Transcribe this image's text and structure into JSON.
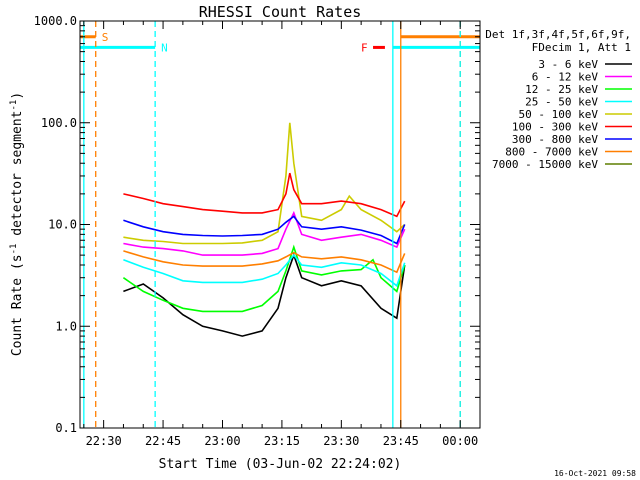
{
  "title": "RHESSI Count Rates",
  "timestamp": "16-Oct-2021 09:58",
  "chart_data": {
    "type": "line",
    "title": "RHESSI Count Rates",
    "xlabel": "Start Time (03-Jun-02 22:24:02)",
    "ylabel_parts": [
      "Count Rate (s",
      "-1",
      " detector segment",
      "-1",
      ")"
    ],
    "y_scale": "log",
    "ylim": [
      0.1,
      1000
    ],
    "y_ticks": [
      "0.1",
      "1.0",
      "10.0",
      "100.0",
      "1000.0"
    ],
    "xlim": [
      "22:24:02",
      "00:05:00"
    ],
    "x_ticks": [
      "22:30",
      "22:45",
      "23:00",
      "23:15",
      "23:30",
      "23:45",
      "00:00"
    ],
    "legend_header": [
      "Det 1f,3f,4f,5f,6f,9f,",
      "FDecim 1, Att 1"
    ],
    "series": [
      {
        "name": "3 - 6 keV",
        "color": "#000000",
        "x": [
          "22:35",
          "22:40",
          "22:45",
          "22:50",
          "22:55",
          "23:00",
          "23:05",
          "23:10",
          "23:14",
          "23:16",
          "23:18",
          "23:20",
          "23:25",
          "23:30",
          "23:35",
          "23:40",
          "23:44",
          "23:46"
        ],
        "y": [
          2.2,
          2.6,
          1.9,
          1.3,
          1.0,
          0.9,
          0.8,
          0.9,
          1.5,
          3.0,
          5.0,
          3.0,
          2.5,
          2.8,
          2.5,
          1.5,
          1.2,
          4.0
        ]
      },
      {
        "name": "6 - 12 keV",
        "color": "#ff00ff",
        "x": [
          "22:35",
          "22:40",
          "22:45",
          "22:50",
          "22:55",
          "23:00",
          "23:05",
          "23:10",
          "23:14",
          "23:16",
          "23:18",
          "23:20",
          "23:25",
          "23:30",
          "23:35",
          "23:40",
          "23:44",
          "23:46"
        ],
        "y": [
          6.5,
          6.0,
          5.8,
          5.5,
          5.0,
          5.0,
          5.0,
          5.2,
          5.8,
          9.0,
          13.0,
          8.0,
          7.0,
          7.5,
          8.0,
          7.0,
          6.0,
          9.0
        ]
      },
      {
        "name": "12 - 25 keV",
        "color": "#00ff00",
        "x": [
          "22:35",
          "22:40",
          "22:45",
          "22:50",
          "22:55",
          "23:00",
          "23:05",
          "23:10",
          "23:14",
          "23:16",
          "23:18",
          "23:20",
          "23:25",
          "23:30",
          "23:35",
          "23:38",
          "23:40",
          "23:44",
          "23:46"
        ],
        "y": [
          3.0,
          2.2,
          1.8,
          1.5,
          1.4,
          1.4,
          1.4,
          1.6,
          2.2,
          3.5,
          6.0,
          3.5,
          3.2,
          3.5,
          3.6,
          4.5,
          3.0,
          2.2,
          4.0
        ]
      },
      {
        "name": "25 - 50 keV",
        "color": "#00ffff",
        "x": [
          "22:35",
          "22:40",
          "22:45",
          "22:50",
          "22:55",
          "23:00",
          "23:05",
          "23:10",
          "23:14",
          "23:16",
          "23:18",
          "23:20",
          "23:25",
          "23:30",
          "23:35",
          "23:40",
          "23:44",
          "23:46"
        ],
        "y": [
          4.5,
          3.8,
          3.3,
          2.8,
          2.7,
          2.7,
          2.7,
          2.9,
          3.3,
          4.0,
          5.0,
          4.0,
          3.8,
          4.2,
          4.0,
          3.3,
          2.5,
          4.2
        ]
      },
      {
        "name": "50 - 100 keV",
        "color": "#cccc00",
        "x": [
          "22:35",
          "22:40",
          "22:45",
          "22:50",
          "22:55",
          "23:00",
          "23:05",
          "23:10",
          "23:14",
          "23:16",
          "23:17",
          "23:18",
          "23:20",
          "23:25",
          "23:30",
          "23:32",
          "23:35",
          "23:40",
          "23:44",
          "23:46"
        ],
        "y": [
          7.5,
          7.0,
          6.8,
          6.5,
          6.5,
          6.5,
          6.6,
          7.0,
          8.5,
          30,
          100,
          40,
          12,
          11,
          14,
          19,
          14,
          11,
          8.5,
          10
        ]
      },
      {
        "name": "100 - 300 keV",
        "color": "#ff0000",
        "x": [
          "22:35",
          "22:40",
          "22:45",
          "22:50",
          "22:55",
          "23:00",
          "23:05",
          "23:10",
          "23:14",
          "23:16",
          "23:17",
          "23:18",
          "23:20",
          "23:25",
          "23:30",
          "23:35",
          "23:40",
          "23:44",
          "23:46"
        ],
        "y": [
          20,
          18,
          16,
          15,
          14,
          13.5,
          13,
          13,
          14,
          20,
          32,
          22,
          16,
          16,
          17,
          16,
          14,
          12,
          17
        ]
      },
      {
        "name": "300 - 800 keV",
        "color": "#0000ff",
        "x": [
          "22:35",
          "22:40",
          "22:45",
          "22:50",
          "22:55",
          "23:00",
          "23:05",
          "23:10",
          "23:14",
          "23:16",
          "23:18",
          "23:20",
          "23:25",
          "23:30",
          "23:35",
          "23:40",
          "23:44",
          "23:46"
        ],
        "y": [
          11,
          9.5,
          8.5,
          8.0,
          7.8,
          7.7,
          7.8,
          8.0,
          9.0,
          10.5,
          12,
          9.5,
          9.0,
          9.5,
          8.8,
          7.8,
          6.5,
          10
        ]
      },
      {
        "name": "800 - 7000 keV",
        "color": "#ff7f00",
        "x": [
          "22:35",
          "22:40",
          "22:45",
          "22:50",
          "22:55",
          "23:00",
          "23:05",
          "23:10",
          "23:14",
          "23:16",
          "23:18",
          "23:20",
          "23:25",
          "23:30",
          "23:35",
          "23:40",
          "23:44",
          "23:46"
        ],
        "y": [
          5.5,
          4.8,
          4.3,
          4.0,
          3.9,
          3.9,
          3.9,
          4.1,
          4.4,
          4.8,
          5.3,
          4.8,
          4.6,
          4.8,
          4.5,
          4.0,
          3.4,
          5.2
        ]
      },
      {
        "name": "7000 - 15000 keV",
        "color": "#5f7f00",
        "x": [],
        "y": []
      }
    ],
    "flags": [
      {
        "label": "S",
        "color": "#ff7f00",
        "level": 700,
        "from": "22:24:02",
        "to": "22:28:00"
      },
      {
        "label": "N",
        "color": "#00ffff",
        "level": 550,
        "from": "22:24:02",
        "to": "22:43:00"
      },
      {
        "label": "F",
        "color": "#ff0000",
        "level": 550,
        "from": "23:38:00",
        "to": "23:41:00"
      },
      {
        "label": "",
        "color": "#ff7f00",
        "level": 700,
        "from": "23:45:00",
        "to": "00:05:00"
      },
      {
        "label": "",
        "color": "#00ffff",
        "level": 550,
        "from": "23:43:00",
        "to": "00:05:00"
      }
    ],
    "vlines": [
      {
        "time": "22:25:00",
        "color": "#00ffff",
        "style": "solid"
      },
      {
        "time": "22:28:00",
        "color": "#ff7f00",
        "style": "dashed"
      },
      {
        "time": "22:43:00",
        "color": "#00ffff",
        "style": "dashed"
      },
      {
        "time": "23:43:00",
        "color": "#00ffff",
        "style": "solid"
      },
      {
        "time": "23:45:00",
        "color": "#ff7f00",
        "style": "solid"
      },
      {
        "time": "00:00:00",
        "color": "#ff7f00",
        "style": "dashed"
      },
      {
        "time": "00:00:00",
        "color": "#00ffff",
        "style": "dashed"
      }
    ]
  }
}
